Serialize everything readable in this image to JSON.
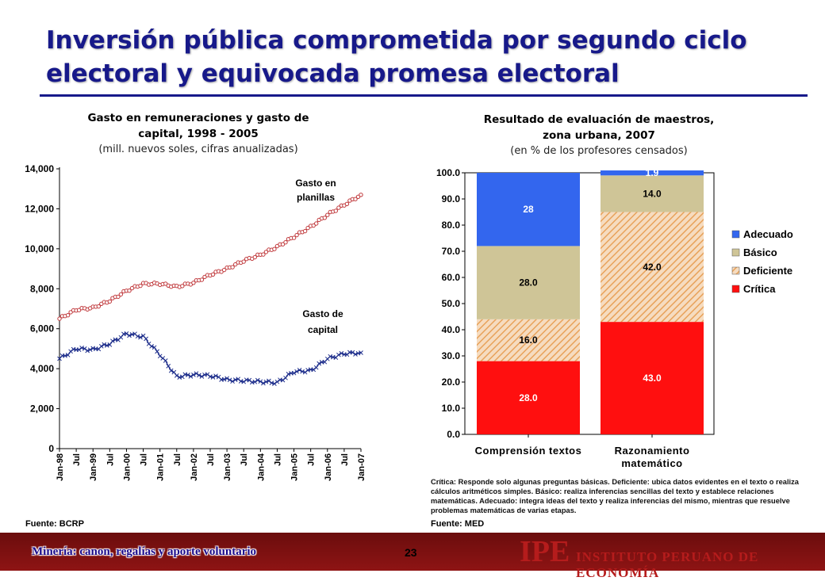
{
  "slide": {
    "title": "Inversión pública comprometida por segundo ciclo electoral y equivocada promesa electoral",
    "footer_left": "Minería: canon, regalías y aporte voluntario",
    "page_number": "23",
    "logo": "IPE",
    "institute": "INSTITUTO PERUANO DE ECONOMÍA"
  },
  "colors": {
    "title": "#17198a",
    "footer_bar": "#7a1010",
    "series_planillas": "#c0393c",
    "series_capital": "#1f2f8c",
    "adecuado": "#3366ee",
    "basico": "#cfc597",
    "deficiente": "#e8a25a",
    "critica": "#ff0f0f"
  },
  "left_chart": {
    "title_line1": "Gasto en remuneraciones  y gasto de",
    "title_line2": "capital, 1998 - 2005",
    "subtitle": "(mill. nuevos soles, cifras anualizadas)",
    "source": "Fuente: BCRP"
  },
  "right_chart": {
    "title_line1": "Resultado de evaluación de maestros,",
    "title_line2": "zona urbana, 2007",
    "subtitle": "(en % de los profesores censados)",
    "footnote": "Crítica: Responde solo algunas preguntas básicas. Deficiente: ubica datos evidentes en el texto o realiza cálculos aritméticos simples. Básico: realiza inferencias sencillas del texto y establece relaciones matemáticas. Adecuado: integra ideas del texto y realiza inferencias del mismo, mientras que resuelve problemas matemáticas de varias etapas.",
    "source": "Fuente: MED"
  },
  "chart_data": [
    {
      "type": "line",
      "ylim": [
        0,
        14000
      ],
      "yticks": [
        "0",
        "2,000",
        "4,000",
        "6,000",
        "8,000",
        "10,000",
        "12,000",
        "14,000"
      ],
      "xticks": [
        "Jan-98",
        "Jul",
        "Jan-99",
        "Jul",
        "Jan-00",
        "Jul",
        "Jan-01",
        "Jul",
        "Jan-02",
        "Jul",
        "Jan-03",
        "Jul",
        "Jan-04",
        "Jul",
        "Jan-05",
        "Jul",
        "Jan-06",
        "Jul",
        "Jan-07"
      ],
      "series": [
        {
          "name": "Gasto en planillas",
          "marker": "circle",
          "x": [
            "Jan-98",
            "Jul-98",
            "Jan-99",
            "Jul-99",
            "Jan-00",
            "Jul-00",
            "Jan-01",
            "Jul-01",
            "Jan-02",
            "Jul-02",
            "Jan-03",
            "Jul-03",
            "Jan-04",
            "Jul-04",
            "Jan-05",
            "Jul-05",
            "Jan-06",
            "Jul-06",
            "Jan-07"
          ],
          "values": [
            6500,
            6950,
            7050,
            7400,
            7900,
            8250,
            8250,
            8100,
            8300,
            8700,
            9000,
            9400,
            9700,
            10100,
            10600,
            11100,
            11700,
            12200,
            12700
          ]
        },
        {
          "name": "Gasto de capital",
          "marker": "x",
          "x": [
            "Jan-98",
            "Jul-98",
            "Jan-99",
            "Jul-99",
            "Jan-00",
            "Jul-00",
            "Jan-01",
            "Jul-01",
            "Jan-02",
            "Jul-02",
            "Jan-03",
            "Jul-03",
            "Jan-04",
            "Jul-04",
            "Jan-05",
            "Jul-05",
            "Jan-06",
            "Jul-06",
            "Jan-07"
          ],
          "values": [
            4500,
            5000,
            4950,
            5250,
            5750,
            5600,
            4700,
            3600,
            3700,
            3650,
            3450,
            3400,
            3350,
            3300,
            3850,
            3900,
            4500,
            4750,
            4800
          ]
        }
      ]
    },
    {
      "type": "bar",
      "stacked": true,
      "ylim": [
        0,
        100
      ],
      "yticks": [
        "0.0",
        "10.0",
        "20.0",
        "30.0",
        "40.0",
        "50.0",
        "60.0",
        "70.0",
        "80.0",
        "90.0",
        "100.0"
      ],
      "categories": [
        "Comprensión textos",
        "Razonamiento matemático"
      ],
      "category_lines": [
        [
          "Comprensión textos"
        ],
        [
          "Razonamiento",
          "matemático"
        ]
      ],
      "legend_position": "right",
      "series": [
        {
          "name": "Crítica",
          "values": [
            28.0,
            43.0
          ],
          "labels": [
            "28.0",
            "43.0"
          ]
        },
        {
          "name": "Deficiente",
          "values": [
            16.0,
            42.0
          ],
          "labels": [
            "16.0",
            "42.0"
          ]
        },
        {
          "name": "Básico",
          "values": [
            28.0,
            14.0
          ],
          "labels": [
            "28.0",
            "14.0"
          ]
        },
        {
          "name": "Adecuado",
          "values": [
            28.0,
            1.9
          ],
          "labels": [
            "28",
            "1.9"
          ]
        }
      ],
      "legend_order": [
        "Adecuado",
        "Básico",
        "Deficiente",
        "Crítica"
      ]
    }
  ]
}
